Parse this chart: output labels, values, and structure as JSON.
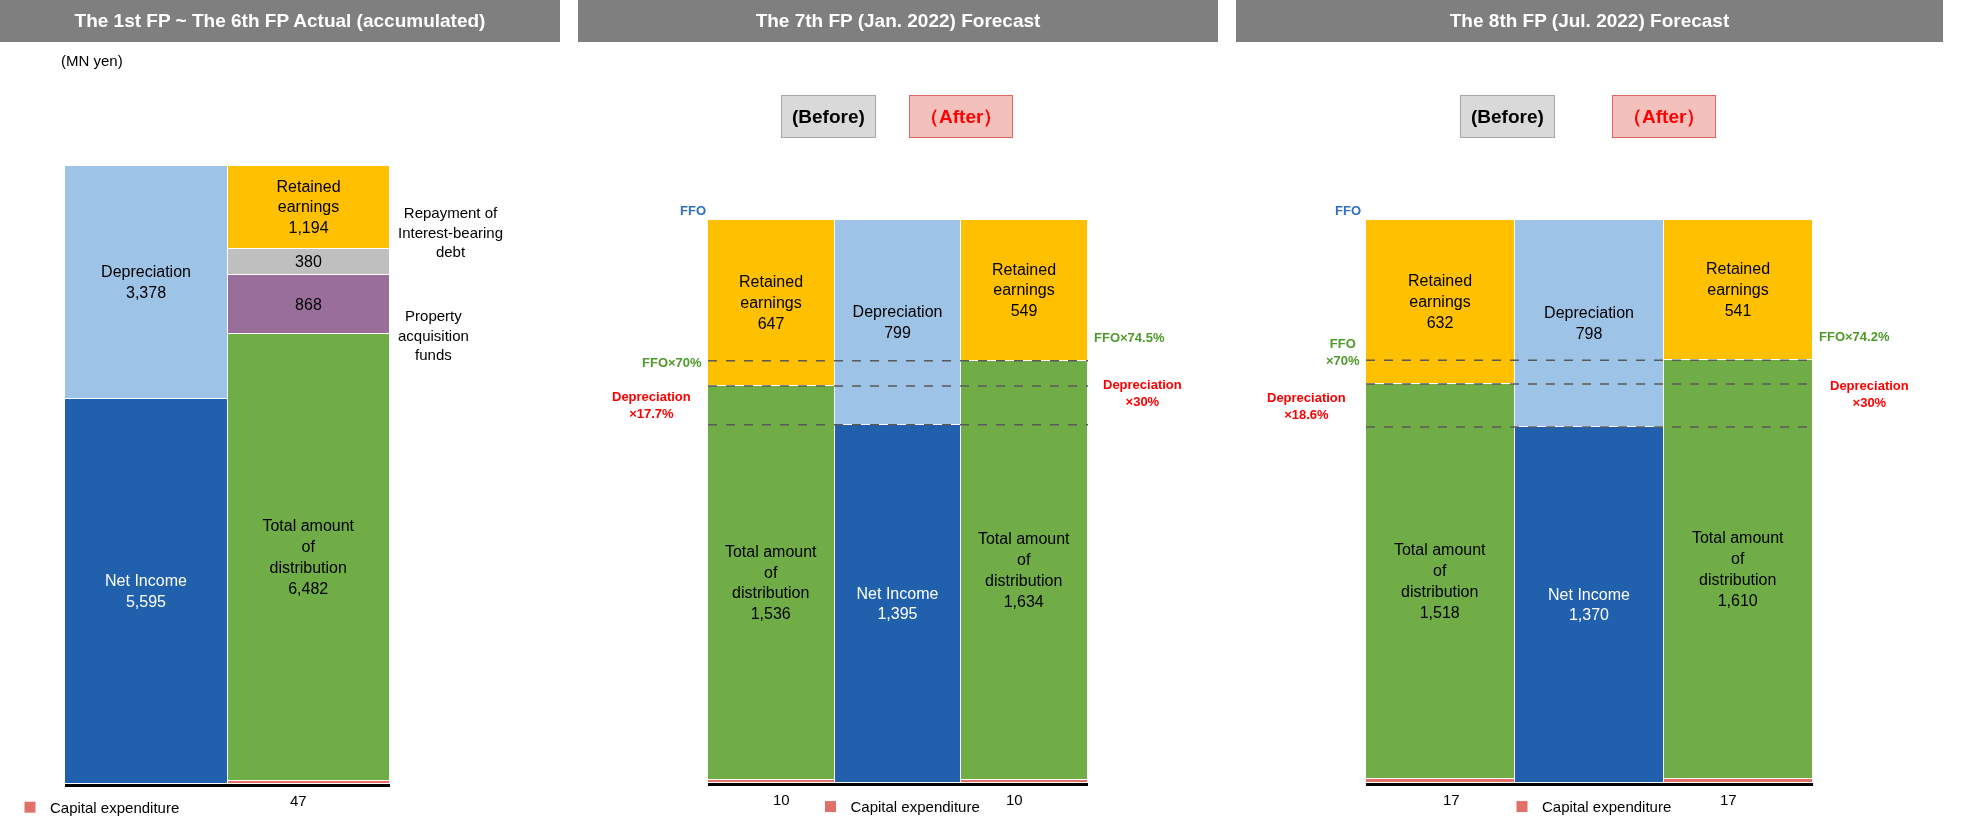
{
  "chart_data": [
    {
      "type": "bar",
      "title": "The 1st FP ~ The 6th FP Actual (accumulated)",
      "stacked": true,
      "legend": "bottom",
      "categories": [
        null,
        null
      ],
      "series": [
        {
          "name": "Net Income",
          "color": "#2060ad",
          "values": [
            5595,
            null
          ],
          "value_labels": [
            "5,595",
            null
          ]
        },
        {
          "name": "Depreciation",
          "color": "#9dc3e6",
          "values": [
            3378,
            null
          ],
          "value_labels": [
            "3,378",
            null
          ]
        },
        {
          "name": "Capital expenditure",
          "color": "#e07068",
          "values": [
            null,
            47
          ],
          "value_labels": [
            null,
            "47"
          ]
        },
        {
          "name": "Total amount of distribution",
          "color": "#70ad47",
          "values": [
            null,
            6482
          ],
          "value_labels": [
            null,
            "6,482"
          ]
        },
        {
          "name": "Property acquisition funds",
          "color": "#9a6e9a",
          "values": [
            null,
            868
          ],
          "value_labels": [
            null,
            "868"
          ]
        },
        {
          "name": "Repayment of Interest-bearing debt",
          "color": "#bfbfbf",
          "values": [
            null,
            380
          ],
          "value_labels": [
            null,
            "380"
          ]
        },
        {
          "name": "Retained earnings",
          "color": "#ffc000",
          "values": [
            null,
            1194
          ],
          "value_labels": [
            null,
            "1,194"
          ]
        }
      ],
      "annotations": [
        "(MN yen)"
      ]
    },
    {
      "type": "bar",
      "title": "The 7th FP (Jan. 2022)  Forecast",
      "stacked": true,
      "legend": "bottom",
      "categories": [
        null,
        null,
        null
      ],
      "series": [
        {
          "name": "Capital expenditure",
          "color": "#e07068",
          "values": [
            10,
            null,
            10
          ],
          "value_labels": [
            "10",
            null,
            "10"
          ]
        },
        {
          "name": "Total amount of distribution",
          "color": "#70ad47",
          "values": [
            1536,
            null,
            1634
          ],
          "value_labels": [
            "1,536",
            null,
            "1,634"
          ]
        },
        {
          "name": "Net Income",
          "color": "#2060ad",
          "values": [
            null,
            1395,
            null
          ],
          "value_labels": [
            null,
            "1,395",
            null
          ]
        },
        {
          "name": "Depreciation",
          "color": "#9dc3e6",
          "values": [
            null,
            799,
            null
          ],
          "value_labels": [
            null,
            "799",
            null
          ]
        },
        {
          "name": "Retained earnings",
          "color": "#ffc000",
          "values": [
            647,
            null,
            549
          ],
          "value_labels": [
            "647",
            null,
            "549"
          ]
        }
      ],
      "ref_lines": [
        {
          "axis": "y",
          "value": 1546,
          "label": "FFO×70%",
          "color": "#595959",
          "line_style": "dashed"
        },
        {
          "axis": "y",
          "value": 1644,
          "label": "FFO×74.5%",
          "color": "#595959",
          "line_style": "dashed"
        },
        {
          "axis": "y",
          "value": 1395,
          "label": null,
          "color": "#595959",
          "line_style": "dashed"
        }
      ],
      "annotations": [
        "FFO",
        "(Before)",
        "（After）",
        "Depreciation ×17.7%",
        "Depreciation ×30%"
      ]
    },
    {
      "type": "bar",
      "title": "The 8th FP (Jul. 2022)  Forecast",
      "stacked": true,
      "legend": "bottom",
      "categories": [
        null,
        null,
        null
      ],
      "series": [
        {
          "name": "Capital expenditure",
          "color": "#e07068",
          "values": [
            17,
            null,
            17
          ],
          "value_labels": [
            "17",
            null,
            "17"
          ]
        },
        {
          "name": "Total amount of distribution",
          "color": "#70ad47",
          "values": [
            1518,
            null,
            1610
          ],
          "value_labels": [
            "1,518",
            null,
            "1,610"
          ]
        },
        {
          "name": "Net Income",
          "color": "#2060ad",
          "values": [
            null,
            1370,
            null
          ],
          "value_labels": [
            null,
            "1,370",
            null
          ]
        },
        {
          "name": "Depreciation",
          "color": "#9dc3e6",
          "values": [
            null,
            798,
            null
          ],
          "value_labels": [
            null,
            "798",
            null
          ]
        },
        {
          "name": "Retained earnings",
          "color": "#ffc000",
          "values": [
            632,
            null,
            541
          ],
          "value_labels": [
            "632",
            null,
            "541"
          ]
        }
      ],
      "ref_lines": [
        {
          "axis": "y",
          "value": 1535,
          "label": "FFO ×70%",
          "color": "#595959",
          "line_style": "dashed"
        },
        {
          "axis": "y",
          "value": 1627,
          "label": "FFO×74.2%",
          "color": "#595959",
          "line_style": "dashed"
        },
        {
          "axis": "y",
          "value": 1370,
          "label": null,
          "color": "#595959",
          "line_style": "dashed"
        }
      ],
      "annotations": [
        "FFO",
        "(Before)",
        "（After）",
        "Depreciation ×18.6%",
        "Depreciation ×30%"
      ]
    }
  ]
}
